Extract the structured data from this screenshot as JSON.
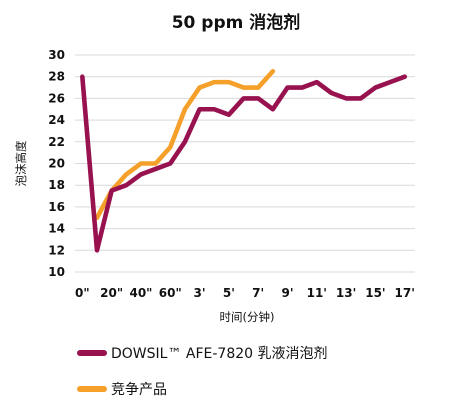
{
  "chart_data": {
    "type": "line",
    "title": "50 ppm 消泡剂",
    "xlabel": "时间(分钟)",
    "ylabel": "泡沫高度",
    "ylim": [
      10,
      30
    ],
    "yticks": [
      10,
      12,
      14,
      16,
      18,
      20,
      22,
      24,
      26,
      28,
      30
    ],
    "x_tick_labels": [
      "0\"",
      "20\"",
      "40\"",
      "60\"",
      "3'",
      "5'",
      "7'",
      "9'",
      "11'",
      "13'",
      "15'",
      "17'"
    ],
    "x_tick_positions": [
      0,
      2,
      4,
      6,
      8,
      10,
      12,
      14,
      16,
      18,
      20,
      22
    ],
    "xlim": [
      -0.5,
      22.7
    ],
    "grid": {
      "horizontal": true,
      "vertical": false,
      "color": "#d9d9d9"
    },
    "legend_position": "bottom",
    "series": [
      {
        "name": "DOWSIL™ AFE-7820 乳液消泡剂",
        "color": "#97124f",
        "x": [
          0,
          1,
          2,
          3,
          4,
          5,
          6,
          7,
          8,
          9,
          10,
          11,
          12,
          13,
          14,
          15,
          16,
          17,
          18,
          19,
          20,
          21,
          22
        ],
        "values": [
          28,
          12,
          17.5,
          18,
          19,
          19.5,
          20,
          22,
          25,
          25,
          24.5,
          26,
          26,
          25,
          27,
          27,
          27.5,
          26.5,
          26,
          26,
          27,
          27.5,
          28
        ]
      },
      {
        "name": "竞争产品",
        "color": "#f5a02a",
        "x": [
          1,
          2,
          3,
          4,
          5,
          6,
          7,
          8,
          9,
          10,
          11,
          12,
          13
        ],
        "values": [
          15,
          17.5,
          19,
          20,
          20,
          21.5,
          25,
          27,
          27.5,
          27.5,
          27,
          27,
          28.5
        ]
      }
    ]
  }
}
